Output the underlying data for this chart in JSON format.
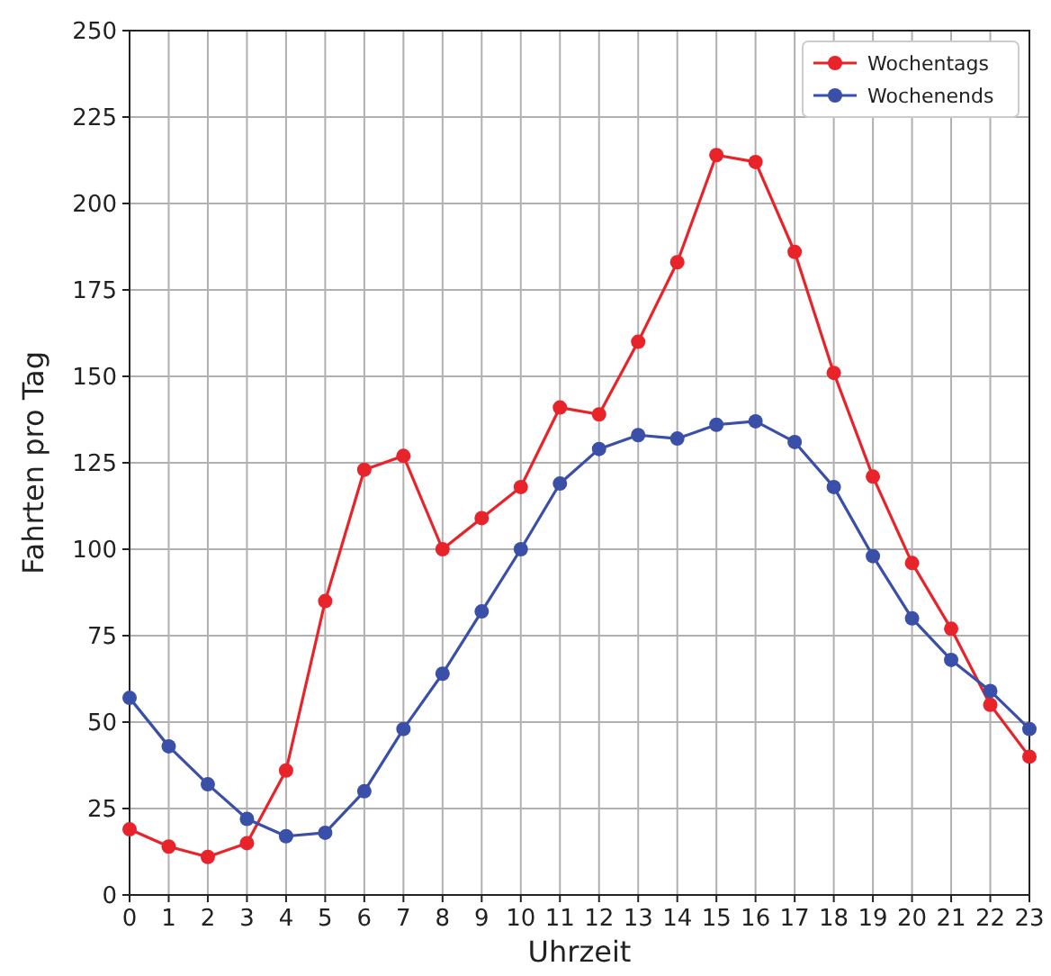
{
  "chart_data": {
    "type": "line",
    "xlabel": "Uhrzeit",
    "ylabel": "Fahrten pro Tag",
    "x": [
      0,
      1,
      2,
      3,
      4,
      5,
      6,
      7,
      8,
      9,
      10,
      11,
      12,
      13,
      14,
      15,
      16,
      17,
      18,
      19,
      20,
      21,
      22,
      23
    ],
    "series": [
      {
        "name": "Wochentags",
        "color": "#e8232a",
        "values": [
          19,
          14,
          11,
          15,
          36,
          85,
          123,
          127,
          100,
          109,
          118,
          141,
          139,
          160,
          183,
          214,
          212,
          186,
          151,
          121,
          96,
          77,
          55,
          40
        ]
      },
      {
        "name": "Wochenends",
        "color": "#3a4fa8",
        "values": [
          57,
          43,
          32,
          22,
          17,
          18,
          30,
          48,
          64,
          82,
          100,
          119,
          129,
          133,
          132,
          136,
          137,
          131,
          118,
          98,
          80,
          68,
          59,
          48
        ]
      }
    ],
    "xlim": [
      0,
      23
    ],
    "xticks": [
      0,
      1,
      2,
      3,
      4,
      5,
      6,
      7,
      8,
      9,
      10,
      11,
      12,
      13,
      14,
      15,
      16,
      17,
      18,
      19,
      20,
      21,
      22,
      23
    ],
    "ylim": [
      0,
      250
    ],
    "yticks": [
      0,
      25,
      50,
      75,
      100,
      125,
      150,
      175,
      200,
      225,
      250
    ],
    "grid": true,
    "legend": "top right",
    "marker": "circle",
    "line_style": "solid"
  }
}
